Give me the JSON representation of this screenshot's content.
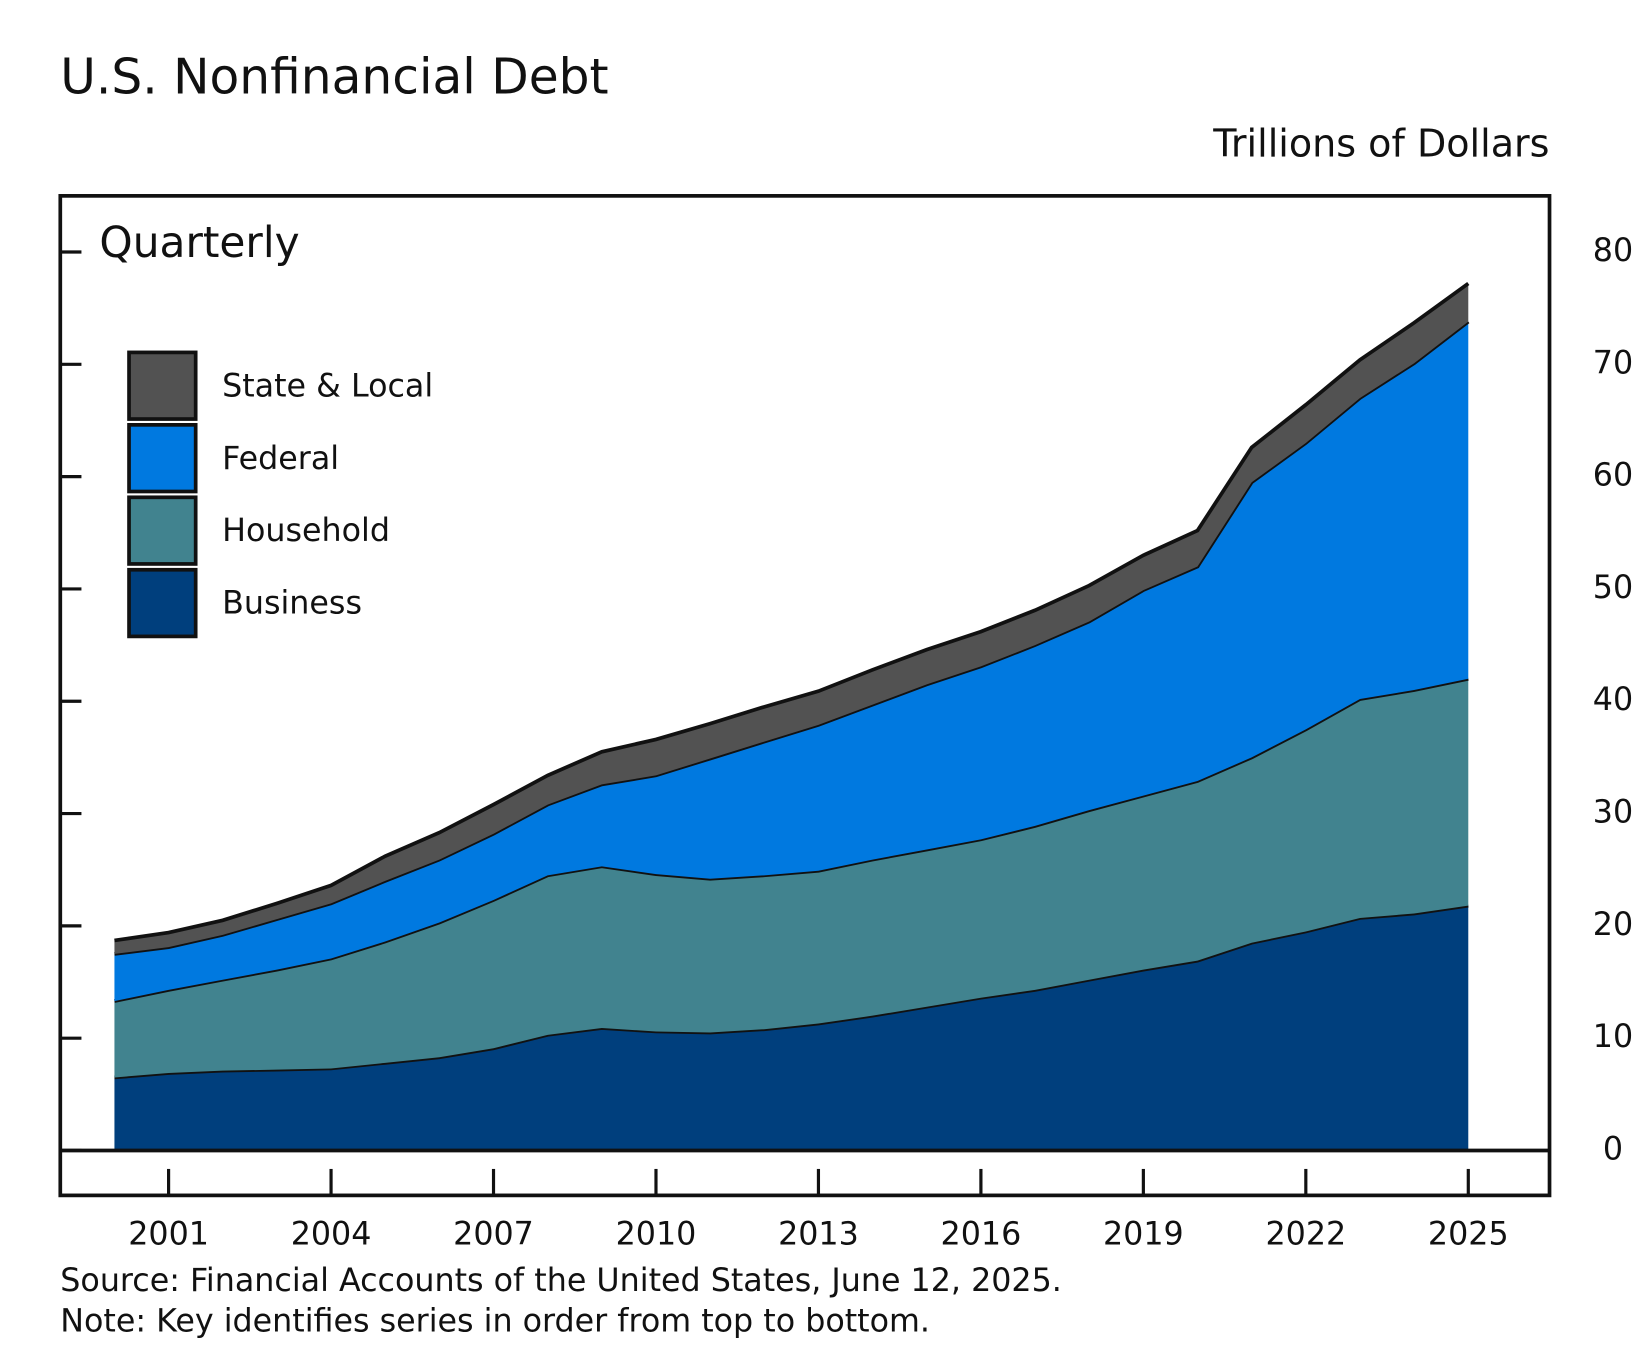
{
  "chart_data": {
    "type": "stacked-area",
    "title": "U.S. Nonfinancial Debt",
    "y_axis_label": "Trillions of Dollars",
    "annotation": "Quarterly",
    "source": "Source: Financial Accounts of the United States, June 12, 2025.",
    "note": "Note: Key identifies series in order from top to bottom.",
    "x": [
      2000,
      2001,
      2002,
      2003,
      2004,
      2005,
      2006,
      2007,
      2008,
      2009,
      2010,
      2011,
      2012,
      2013,
      2014,
      2015,
      2016,
      2017,
      2018,
      2019,
      2020,
      2021,
      2022,
      2023,
      2024,
      2025
    ],
    "series": [
      {
        "name": "Business",
        "color": "#003f7d",
        "values": [
          6.5,
          6.9,
          7.1,
          7.2,
          7.3,
          7.8,
          8.3,
          9.1,
          10.3,
          10.9,
          10.6,
          10.5,
          10.8,
          11.3,
          12.0,
          12.8,
          13.6,
          14.3,
          15.2,
          16.1,
          16.9,
          18.5,
          19.5,
          20.7,
          21.1,
          21.8
        ]
      },
      {
        "name": "Household",
        "color": "#41838f",
        "values": [
          6.8,
          7.4,
          8.1,
          8.9,
          9.8,
          10.8,
          12.0,
          13.2,
          14.2,
          14.4,
          14.0,
          13.7,
          13.7,
          13.6,
          13.9,
          14.0,
          14.1,
          14.6,
          15.1,
          15.5,
          16.0,
          16.5,
          18.0,
          19.5,
          19.9,
          20.2
        ]
      },
      {
        "name": "Federal",
        "color": "#0079e0",
        "values": [
          4.2,
          3.8,
          4.0,
          4.5,
          4.9,
          5.4,
          5.6,
          5.9,
          6.3,
          7.3,
          8.8,
          10.7,
          11.9,
          13.0,
          13.8,
          14.7,
          15.4,
          16.1,
          16.8,
          18.3,
          19.1,
          24.5,
          25.5,
          26.8,
          29.1,
          31.8
        ]
      },
      {
        "name": "State & Local",
        "color": "#525252",
        "values": [
          1.2,
          1.3,
          1.3,
          1.4,
          1.6,
          2.2,
          2.4,
          2.6,
          2.6,
          2.9,
          3.2,
          3.1,
          3.1,
          3.0,
          3.1,
          3.1,
          3.1,
          3.1,
          3.2,
          3.1,
          3.2,
          3.1,
          3.4,
          3.4,
          3.6,
          3.4
        ]
      }
    ],
    "xlim": [
      1999,
      2026.5
    ],
    "xticks": [
      2001,
      2004,
      2007,
      2010,
      2013,
      2016,
      2019,
      2022,
      2025
    ],
    "ylim": [
      -4,
      85
    ],
    "yticks": [
      0,
      10,
      20,
      30,
      40,
      50,
      60,
      70,
      80
    ]
  }
}
